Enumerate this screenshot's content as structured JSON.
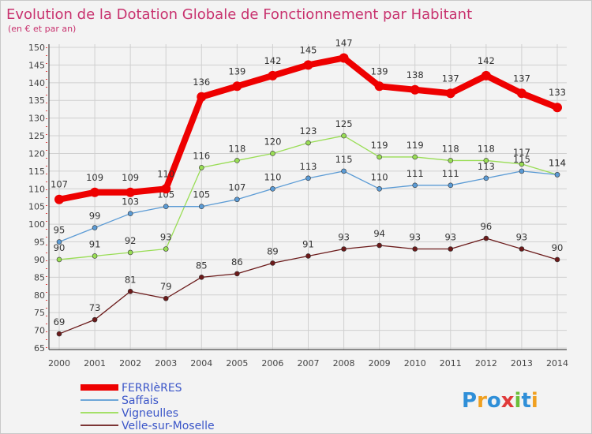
{
  "chart_data": {
    "type": "line",
    "title": "Evolution de la Dotation Globale de Fonctionnement par Habitant",
    "subtitle": "(en € et par an)",
    "xlabel": "",
    "ylabel": "",
    "x": [
      "2000",
      "2001",
      "2002",
      "2003",
      "2004",
      "2005",
      "2006",
      "2007",
      "2008",
      "2009",
      "2010",
      "2011",
      "2012",
      "2013",
      "2014"
    ],
    "ylim": [
      65,
      150
    ],
    "yticks": [
      65,
      70,
      75,
      80,
      85,
      90,
      95,
      100,
      105,
      110,
      115,
      120,
      125,
      130,
      135,
      140,
      145,
      150
    ],
    "grid": true,
    "legend_position": "bottom-left",
    "series": [
      {
        "name": "FERRIèRES",
        "color": "#ee0000",
        "values": [
          107,
          109,
          109,
          110,
          136,
          139,
          142,
          145,
          147,
          139,
          138,
          137,
          142,
          137,
          133
        ]
      },
      {
        "name": "Saffais",
        "color": "#5b9bd5",
        "values": [
          95,
          99,
          103,
          105,
          105,
          107,
          110,
          113,
          115,
          110,
          111,
          111,
          113,
          115,
          114
        ]
      },
      {
        "name": "Vigneulles",
        "color": "#99dd55",
        "values": [
          90,
          91,
          92,
          93,
          116,
          118,
          120,
          123,
          125,
          119,
          119,
          118,
          118,
          117,
          114
        ]
      },
      {
        "name": "Velle-sur-Moselle",
        "color": "#6b1a1a",
        "values": [
          69,
          73,
          81,
          79,
          85,
          86,
          89,
          91,
          93,
          94,
          93,
          93,
          96,
          93,
          90
        ]
      }
    ]
  },
  "brand": {
    "logo_text": "Proxiti"
  }
}
